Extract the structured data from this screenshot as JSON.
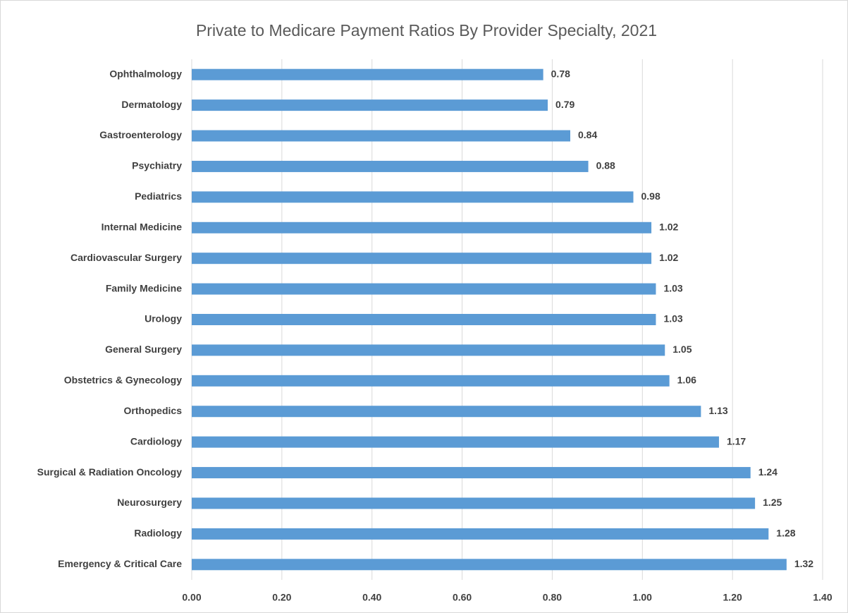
{
  "chart_data": {
    "type": "bar",
    "orientation": "horizontal",
    "title": "Private to Medicare Payment Ratios By Provider Specialty, 2021",
    "categories": [
      "Ophthalmology",
      "Dermatology",
      "Gastroenterology",
      "Psychiatry",
      "Pediatrics",
      "Internal Medicine",
      "Cardiovascular Surgery",
      "Family Medicine",
      "Urology",
      "General Surgery",
      "Obstetrics & Gynecology",
      "Orthopedics",
      "Cardiology",
      "Surgical & Radiation Oncology",
      "Neurosurgery",
      "Radiology",
      "Emergency & Critical Care"
    ],
    "values": [
      0.78,
      0.79,
      0.84,
      0.88,
      0.98,
      1.02,
      1.02,
      1.03,
      1.03,
      1.05,
      1.06,
      1.13,
      1.17,
      1.24,
      1.25,
      1.28,
      1.32
    ],
    "color": "#5b9bd5",
    "xlim": [
      0,
      1.4
    ],
    "xticks": [
      {
        "value": 0,
        "label": "0.00"
      },
      {
        "value": 0.2,
        "label": "0.20"
      },
      {
        "value": 0.4,
        "label": "0.40"
      },
      {
        "value": 0.6,
        "label": "0.60"
      },
      {
        "value": 0.8,
        "label": "0.80"
      },
      {
        "value": 1,
        "label": "1.00"
      },
      {
        "value": 1.2,
        "label": "1.20"
      },
      {
        "value": 1.4,
        "label": "1.40"
      }
    ],
    "grid": true
  }
}
